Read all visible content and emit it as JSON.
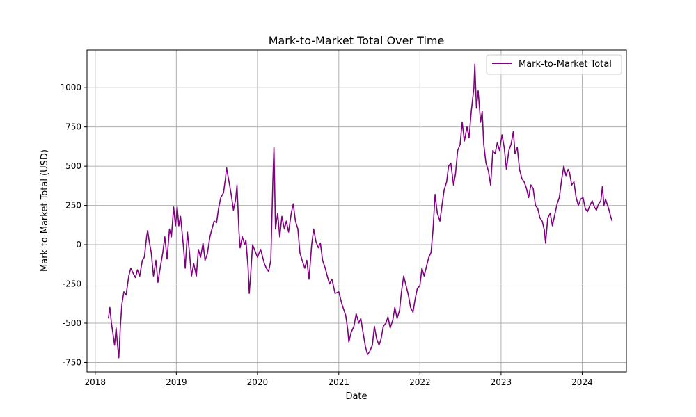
{
  "chart_data": {
    "type": "line",
    "title": "Mark-to-Market Total Over Time",
    "xlabel": "Date",
    "ylabel": "Mark-to-Market Total (USD)",
    "xlim": [
      "2017-11-25",
      "2024-07-18"
    ],
    "ylim": [
      -810,
      1240
    ],
    "x_ticks": [
      "2018",
      "2019",
      "2020",
      "2021",
      "2022",
      "2023",
      "2024"
    ],
    "y_ticks": [
      -750,
      -500,
      -250,
      0,
      250,
      500,
      750,
      1000
    ],
    "grid": true,
    "legend": "upper-right",
    "series": [
      {
        "name": "Mark-to-Market Total",
        "color": "#800080",
        "points": [
          [
            "2018-03-01",
            -470
          ],
          [
            "2018-03-08",
            -400
          ],
          [
            "2018-03-15",
            -500
          ],
          [
            "2018-03-22",
            -570
          ],
          [
            "2018-03-29",
            -640
          ],
          [
            "2018-04-05",
            -530
          ],
          [
            "2018-04-12",
            -650
          ],
          [
            "2018-04-17",
            -720
          ],
          [
            "2018-04-24",
            -520
          ],
          [
            "2018-05-01",
            -380
          ],
          [
            "2018-05-10",
            -300
          ],
          [
            "2018-05-20",
            -320
          ],
          [
            "2018-06-01",
            -200
          ],
          [
            "2018-06-10",
            -150
          ],
          [
            "2018-06-20",
            -180
          ],
          [
            "2018-07-01",
            -210
          ],
          [
            "2018-07-10",
            -160
          ],
          [
            "2018-07-20",
            -200
          ],
          [
            "2018-08-01",
            -100
          ],
          [
            "2018-08-10",
            -80
          ],
          [
            "2018-08-20",
            50
          ],
          [
            "2018-08-25",
            90
          ],
          [
            "2018-09-01",
            20
          ],
          [
            "2018-09-10",
            -50
          ],
          [
            "2018-09-20",
            -200
          ],
          [
            "2018-10-01",
            -100
          ],
          [
            "2018-10-10",
            -240
          ],
          [
            "2018-10-20",
            -150
          ],
          [
            "2018-11-01",
            -50
          ],
          [
            "2018-11-10",
            50
          ],
          [
            "2018-11-20",
            -90
          ],
          [
            "2018-12-01",
            100
          ],
          [
            "2018-12-10",
            50
          ],
          [
            "2018-12-20",
            240
          ],
          [
            "2018-12-28",
            120
          ],
          [
            "2019-01-05",
            240
          ],
          [
            "2019-01-12",
            120
          ],
          [
            "2019-01-20",
            180
          ],
          [
            "2019-02-01",
            0
          ],
          [
            "2019-02-10",
            -150
          ],
          [
            "2019-02-20",
            80
          ],
          [
            "2019-03-01",
            -50
          ],
          [
            "2019-03-10",
            -200
          ],
          [
            "2019-03-20",
            -120
          ],
          [
            "2019-04-01",
            -200
          ],
          [
            "2019-04-10",
            -30
          ],
          [
            "2019-04-20",
            -80
          ],
          [
            "2019-05-01",
            10
          ],
          [
            "2019-05-10",
            -100
          ],
          [
            "2019-05-20",
            -60
          ],
          [
            "2019-06-01",
            50
          ],
          [
            "2019-06-10",
            100
          ],
          [
            "2019-06-20",
            150
          ],
          [
            "2019-07-01",
            140
          ],
          [
            "2019-07-10",
            230
          ],
          [
            "2019-07-20",
            300
          ],
          [
            "2019-08-01",
            330
          ],
          [
            "2019-08-10",
            420
          ],
          [
            "2019-08-15",
            490
          ],
          [
            "2019-08-25",
            410
          ],
          [
            "2019-09-05",
            320
          ],
          [
            "2019-09-15",
            220
          ],
          [
            "2019-09-25",
            290
          ],
          [
            "2019-10-01",
            380
          ],
          [
            "2019-10-10",
            80
          ],
          [
            "2019-10-15",
            -20
          ],
          [
            "2019-10-25",
            50
          ],
          [
            "2019-11-05",
            0
          ],
          [
            "2019-11-10",
            30
          ],
          [
            "2019-11-20",
            -150
          ],
          [
            "2019-11-25",
            -310
          ],
          [
            "2019-12-01",
            -200
          ],
          [
            "2019-12-10",
            0
          ],
          [
            "2020-01-01",
            -80
          ],
          [
            "2020-01-15",
            -30
          ],
          [
            "2020-02-01",
            -120
          ],
          [
            "2020-02-10",
            -150
          ],
          [
            "2020-02-20",
            -170
          ],
          [
            "2020-03-01",
            -100
          ],
          [
            "2020-03-10",
            400
          ],
          [
            "2020-03-15",
            620
          ],
          [
            "2020-03-22",
            100
          ],
          [
            "2020-04-01",
            200
          ],
          [
            "2020-04-10",
            50
          ],
          [
            "2020-04-20",
            180
          ],
          [
            "2020-05-01",
            100
          ],
          [
            "2020-05-10",
            150
          ],
          [
            "2020-05-20",
            80
          ],
          [
            "2020-06-01",
            200
          ],
          [
            "2020-06-10",
            260
          ],
          [
            "2020-06-20",
            150
          ],
          [
            "2020-07-01",
            100
          ],
          [
            "2020-07-10",
            -50
          ],
          [
            "2020-07-20",
            -100
          ],
          [
            "2020-08-01",
            -150
          ],
          [
            "2020-08-10",
            -100
          ],
          [
            "2020-08-20",
            -220
          ],
          [
            "2020-09-01",
            0
          ],
          [
            "2020-09-10",
            100
          ],
          [
            "2020-09-20",
            20
          ],
          [
            "2020-10-01",
            -20
          ],
          [
            "2020-10-10",
            10
          ],
          [
            "2020-10-20",
            -100
          ],
          [
            "2020-11-01",
            -150
          ],
          [
            "2020-11-10",
            -200
          ],
          [
            "2020-11-20",
            -250
          ],
          [
            "2020-12-01",
            -220
          ],
          [
            "2020-12-15",
            -310
          ],
          [
            "2021-01-01",
            -300
          ],
          [
            "2021-01-15",
            -380
          ],
          [
            "2021-02-01",
            -450
          ],
          [
            "2021-02-10",
            -540
          ],
          [
            "2021-02-15",
            -620
          ],
          [
            "2021-02-25",
            -560
          ],
          [
            "2021-03-10",
            -520
          ],
          [
            "2021-03-20",
            -440
          ],
          [
            "2021-04-01",
            -500
          ],
          [
            "2021-04-10",
            -470
          ],
          [
            "2021-04-20",
            -560
          ],
          [
            "2021-05-01",
            -650
          ],
          [
            "2021-05-10",
            -700
          ],
          [
            "2021-05-20",
            -680
          ],
          [
            "2021-06-01",
            -640
          ],
          [
            "2021-06-10",
            -520
          ],
          [
            "2021-06-20",
            -600
          ],
          [
            "2021-07-01",
            -640
          ],
          [
            "2021-07-10",
            -600
          ],
          [
            "2021-07-20",
            -520
          ],
          [
            "2021-08-01",
            -500
          ],
          [
            "2021-08-10",
            -460
          ],
          [
            "2021-08-20",
            -530
          ],
          [
            "2021-09-01",
            -480
          ],
          [
            "2021-09-10",
            -400
          ],
          [
            "2021-09-20",
            -470
          ],
          [
            "2021-10-01",
            -420
          ],
          [
            "2021-10-10",
            -300
          ],
          [
            "2021-10-20",
            -200
          ],
          [
            "2021-11-01",
            -270
          ],
          [
            "2021-11-10",
            -320
          ],
          [
            "2021-11-20",
            -400
          ],
          [
            "2021-12-01",
            -430
          ],
          [
            "2021-12-10",
            -350
          ],
          [
            "2021-12-20",
            -280
          ],
          [
            "2022-01-01",
            -260
          ],
          [
            "2022-01-10",
            -150
          ],
          [
            "2022-01-20",
            -200
          ],
          [
            "2022-02-01",
            -130
          ],
          [
            "2022-02-10",
            -80
          ],
          [
            "2022-02-20",
            -50
          ],
          [
            "2022-03-01",
            100
          ],
          [
            "2022-03-10",
            320
          ],
          [
            "2022-03-20",
            200
          ],
          [
            "2022-04-01",
            150
          ],
          [
            "2022-04-10",
            250
          ],
          [
            "2022-04-20",
            350
          ],
          [
            "2022-05-01",
            400
          ],
          [
            "2022-05-10",
            500
          ],
          [
            "2022-05-20",
            520
          ],
          [
            "2022-06-01",
            380
          ],
          [
            "2022-06-10",
            450
          ],
          [
            "2022-06-20",
            600
          ],
          [
            "2022-07-01",
            640
          ],
          [
            "2022-07-10",
            780
          ],
          [
            "2022-07-20",
            660
          ],
          [
            "2022-08-01",
            750
          ],
          [
            "2022-08-10",
            680
          ],
          [
            "2022-08-20",
            850
          ],
          [
            "2022-09-01",
            1000
          ],
          [
            "2022-09-05",
            1150
          ],
          [
            "2022-09-12",
            870
          ],
          [
            "2022-09-20",
            980
          ],
          [
            "2022-10-01",
            780
          ],
          [
            "2022-10-08",
            850
          ],
          [
            "2022-10-15",
            640
          ],
          [
            "2022-10-25",
            520
          ],
          [
            "2022-11-05",
            470
          ],
          [
            "2022-11-15",
            380
          ],
          [
            "2022-11-25",
            600
          ],
          [
            "2022-12-05",
            580
          ],
          [
            "2022-12-15",
            650
          ],
          [
            "2022-12-25",
            600
          ],
          [
            "2023-01-05",
            700
          ],
          [
            "2023-01-15",
            620
          ],
          [
            "2023-01-25",
            480
          ],
          [
            "2023-02-05",
            600
          ],
          [
            "2023-02-15",
            640
          ],
          [
            "2023-02-25",
            720
          ],
          [
            "2023-03-05",
            580
          ],
          [
            "2023-03-15",
            620
          ],
          [
            "2023-03-25",
            480
          ],
          [
            "2023-04-05",
            420
          ],
          [
            "2023-04-15",
            400
          ],
          [
            "2023-04-25",
            360
          ],
          [
            "2023-05-05",
            300
          ],
          [
            "2023-05-15",
            380
          ],
          [
            "2023-05-25",
            360
          ],
          [
            "2023-06-05",
            250
          ],
          [
            "2023-06-15",
            230
          ],
          [
            "2023-06-25",
            170
          ],
          [
            "2023-07-05",
            150
          ],
          [
            "2023-07-15",
            90
          ],
          [
            "2023-07-20",
            10
          ],
          [
            "2023-07-30",
            170
          ],
          [
            "2023-08-10",
            200
          ],
          [
            "2023-08-20",
            120
          ],
          [
            "2023-09-01",
            200
          ],
          [
            "2023-09-10",
            260
          ],
          [
            "2023-09-20",
            300
          ],
          [
            "2023-10-01",
            420
          ],
          [
            "2023-10-10",
            500
          ],
          [
            "2023-10-20",
            440
          ],
          [
            "2023-10-30",
            480
          ],
          [
            "2023-11-05",
            460
          ],
          [
            "2023-11-15",
            380
          ],
          [
            "2023-11-25",
            400
          ],
          [
            "2023-12-05",
            300
          ],
          [
            "2023-12-15",
            250
          ],
          [
            "2023-12-25",
            290
          ],
          [
            "2024-01-05",
            300
          ],
          [
            "2024-01-15",
            230
          ],
          [
            "2024-01-25",
            210
          ],
          [
            "2024-02-05",
            250
          ],
          [
            "2024-02-15",
            280
          ],
          [
            "2024-02-25",
            240
          ],
          [
            "2024-03-05",
            220
          ],
          [
            "2024-03-15",
            260
          ],
          [
            "2024-03-25",
            280
          ],
          [
            "2024-04-01",
            370
          ],
          [
            "2024-04-08",
            250
          ],
          [
            "2024-04-15",
            290
          ],
          [
            "2024-04-22",
            260
          ],
          [
            "2024-05-01",
            220
          ],
          [
            "2024-05-08",
            180
          ],
          [
            "2024-05-15",
            150
          ]
        ]
      }
    ]
  }
}
